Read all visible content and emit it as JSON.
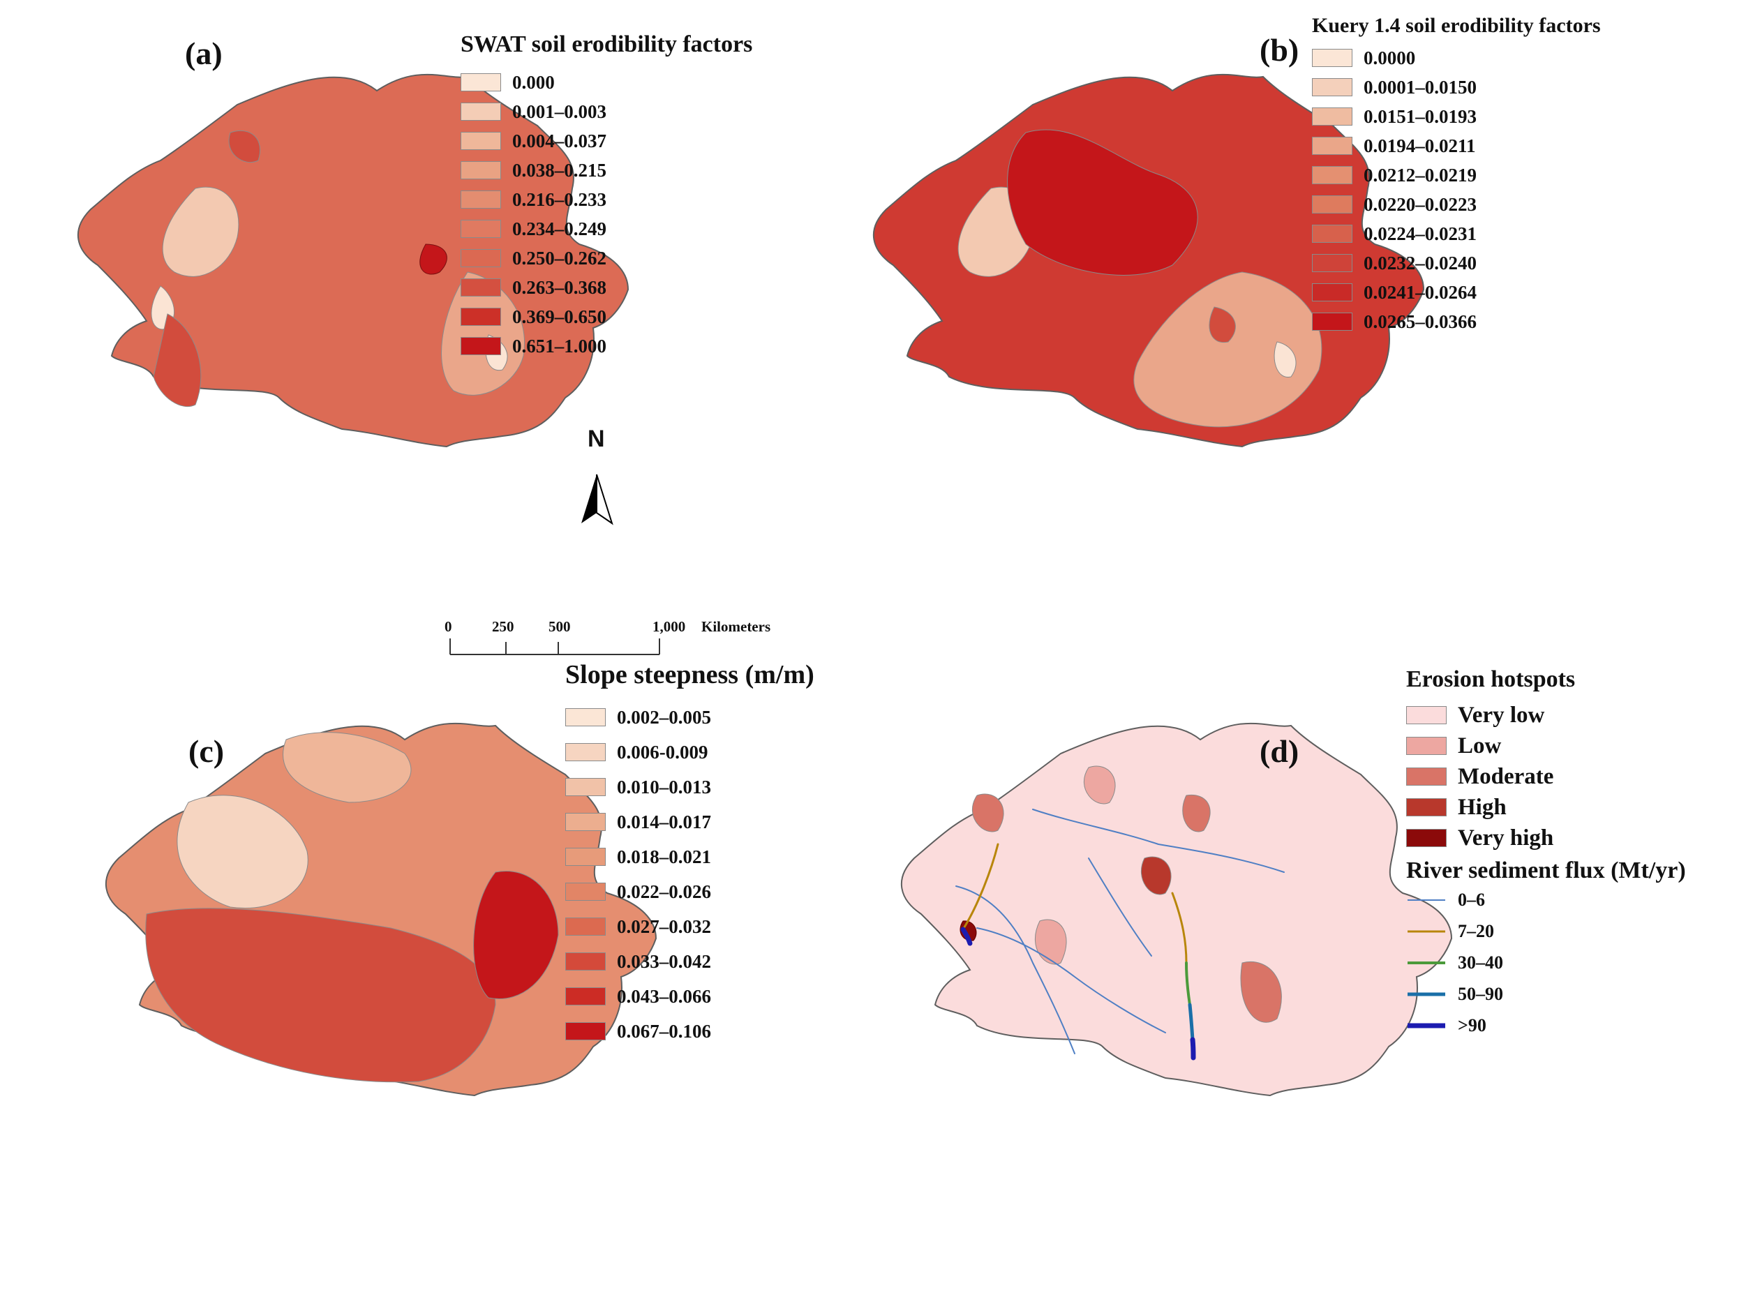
{
  "panels": {
    "a": {
      "label": "(a)",
      "legend_title": "SWAT soil erodibility factors",
      "classes": [
        {
          "label": "0.000",
          "color": "#fbe6d6"
        },
        {
          "label": "0.001–0.003",
          "color": "#f4cdb6"
        },
        {
          "label": "0.004–0.037",
          "color": "#efb79a"
        },
        {
          "label": "0.038–0.215",
          "color": "#e9a283"
        },
        {
          "label": "0.216–0.233",
          "color": "#e48d70"
        },
        {
          "label": "0.234–0.249",
          "color": "#e07a61"
        },
        {
          "label": "0.250–0.262",
          "color": "#db6952"
        },
        {
          "label": "0.263–0.368",
          "color": "#d45040"
        },
        {
          "label": "0.369–0.650",
          "color": "#cc3028"
        },
        {
          "label": "0.651–1.000",
          "color": "#c4161a"
        }
      ]
    },
    "b": {
      "label": "(b)",
      "legend_title": "Kuery 1.4 soil erodibility factors",
      "classes": [
        {
          "label": "0.0000",
          "color": "#fbe6d6"
        },
        {
          "label": "0.0001–0.0150",
          "color": "#f4d0bb"
        },
        {
          "label": "0.0151–0.0193",
          "color": "#efbca1"
        },
        {
          "label": "0.0194–0.0211",
          "color": "#eaa689"
        },
        {
          "label": "0.0212–0.0219",
          "color": "#e49071"
        },
        {
          "label": "0.0220–0.0223",
          "color": "#de7b5e"
        },
        {
          "label": "0.0224–0.0231",
          "color": "#d7614c"
        },
        {
          "label": "0.0232–0.0240",
          "color": "#cf4339"
        },
        {
          "label": "0.0241–0.0264",
          "color": "#c92a27"
        },
        {
          "label": "0.0265–0.0366",
          "color": "#c4161a"
        }
      ]
    },
    "c": {
      "label": "(c)",
      "legend_title": "Slope steepness (m/m)",
      "classes": [
        {
          "label": "0.002–0.005",
          "color": "#fbe6d6"
        },
        {
          "label": "0.006-0.009",
          "color": "#f6d5c1"
        },
        {
          "label": "0.010–0.013",
          "color": "#f1c2a8"
        },
        {
          "label": "0.014–0.017",
          "color": "#ecae8f"
        },
        {
          "label": "0.018–0.021",
          "color": "#e79b7a"
        },
        {
          "label": "0.022–0.026",
          "color": "#e28566"
        },
        {
          "label": "0.027–0.032",
          "color": "#dc6a50"
        },
        {
          "label": "0.033–0.042",
          "color": "#d44a3a"
        },
        {
          "label": "0.043–0.066",
          "color": "#cc2c25"
        },
        {
          "label": "0.067–0.106",
          "color": "#c4161a"
        }
      ]
    },
    "d": {
      "label": "(d)",
      "legend_title": "Erosion hotspots",
      "classes": [
        {
          "label": "Very low",
          "color": "#fbdcdc"
        },
        {
          "label": "Low",
          "color": "#eda7a1"
        },
        {
          "label": "Moderate",
          "color": "#d97467"
        },
        {
          "label": "High",
          "color": "#b8382c"
        },
        {
          "label": "Very high",
          "color": "#8b0a0a"
        }
      ],
      "flux_title": "River sediment flux (Mt/yr)",
      "flux_classes": [
        {
          "label": "0–6",
          "color": "#4f7fc4",
          "width": 2
        },
        {
          "label": "7–20",
          "color": "#b8860b",
          "width": 3
        },
        {
          "label": "30–40",
          "color": "#4b9a3a",
          "width": 4
        },
        {
          "label": "50–90",
          "color": "#1a6fa8",
          "width": 5
        },
        {
          "label": ">90",
          "color": "#1c1cb0",
          "width": 7
        }
      ]
    }
  },
  "north_arrow": {
    "label": "N"
  },
  "scale_bar": {
    "ticks": [
      "0",
      "250",
      "500",
      "1,000"
    ],
    "unit": "Kilometers"
  }
}
